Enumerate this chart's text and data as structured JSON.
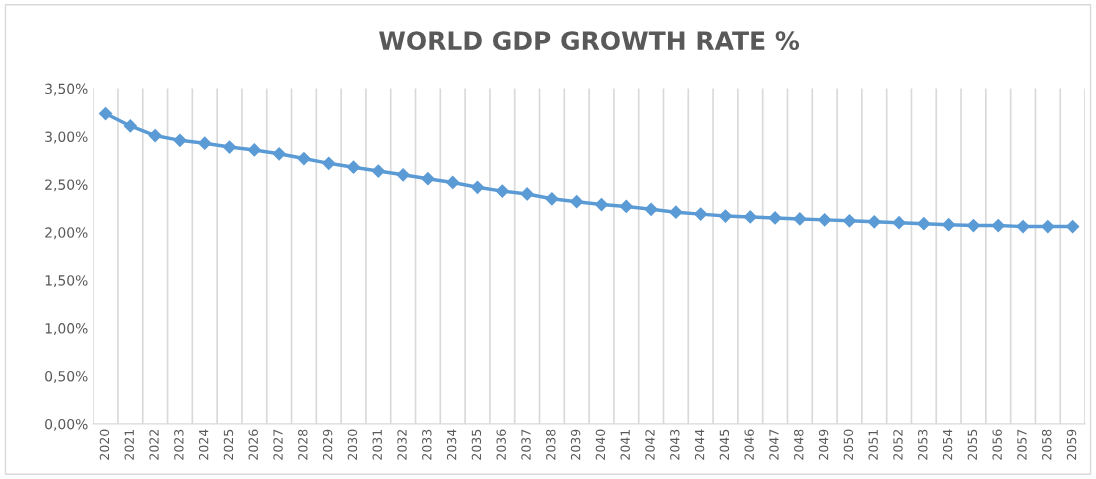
{
  "chart_data": {
    "type": "line",
    "title": "WORLD GDP GROWTH RATE %",
    "categories": [
      "2020",
      "2021",
      "2022",
      "2023",
      "2024",
      "2025",
      "2026",
      "2027",
      "2028",
      "2029",
      "2030",
      "2031",
      "2032",
      "2033",
      "2034",
      "2035",
      "2036",
      "2037",
      "2038",
      "2039",
      "2040",
      "2041",
      "2042",
      "2043",
      "2044",
      "2045",
      "2046",
      "2047",
      "2048",
      "2049",
      "2050",
      "2051",
      "2052",
      "2053",
      "2054",
      "2055",
      "2056",
      "2057",
      "2058",
      "2059"
    ],
    "series": [
      {
        "color": "#5b9bd5",
        "values": [
          3.24,
          3.11,
          3.01,
          2.96,
          2.93,
          2.89,
          2.86,
          2.82,
          2.77,
          2.72,
          2.68,
          2.64,
          2.6,
          2.56,
          2.52,
          2.47,
          2.43,
          2.4,
          2.35,
          2.32,
          2.29,
          2.27,
          2.24,
          2.21,
          2.19,
          2.17,
          2.16,
          2.15,
          2.14,
          2.13,
          2.12,
          2.11,
          2.1,
          2.09,
          2.08,
          2.07,
          2.07,
          2.06,
          2.06,
          2.06
        ]
      }
    ],
    "ylim": [
      0,
      3.5
    ],
    "yticks": [
      {
        "value": 0,
        "label": "0,00%"
      },
      {
        "value": 0.5,
        "label": "0,50%"
      },
      {
        "value": 1,
        "label": "1,00%"
      },
      {
        "value": 1.5,
        "label": "1,50%"
      },
      {
        "value": 2,
        "label": "2,00%"
      },
      {
        "value": 2.5,
        "label": "2,50%"
      },
      {
        "value": 3,
        "label": "3,00%"
      },
      {
        "value": 3.5,
        "label": "3,50%"
      }
    ],
    "grid": "x",
    "marker": "diamond",
    "line_style": "solid"
  }
}
